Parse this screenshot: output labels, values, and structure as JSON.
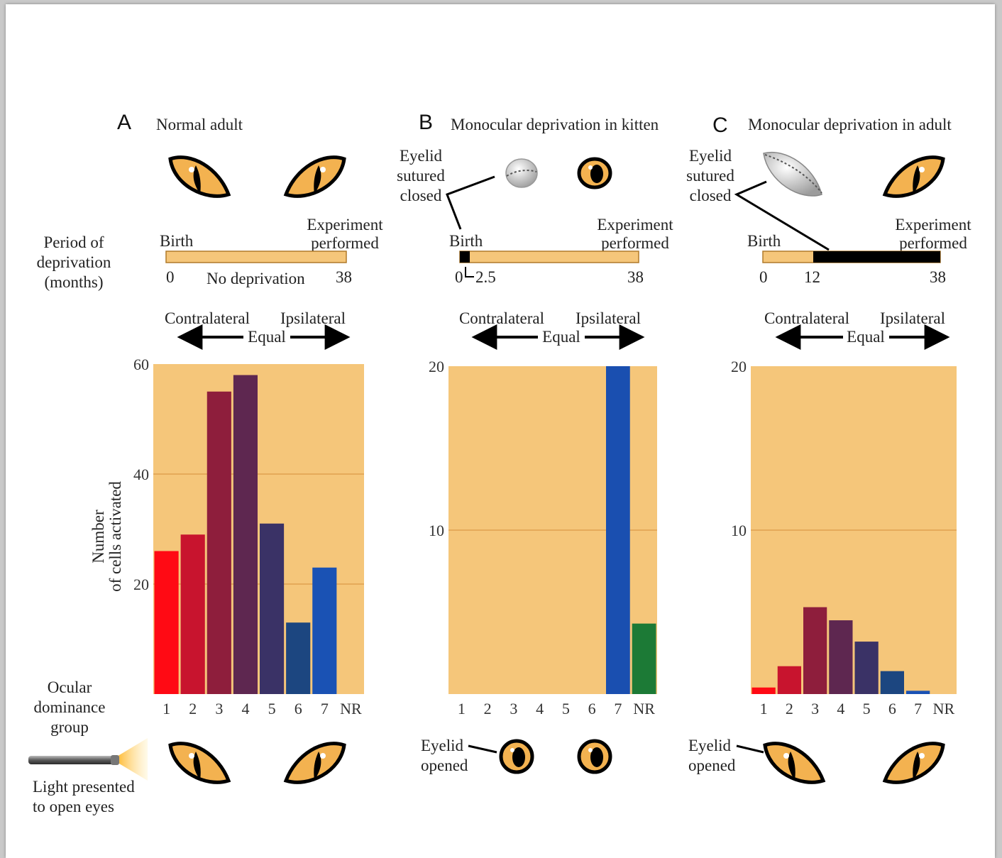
{
  "colors": {
    "plot_background": "#f5c67a",
    "gridline": "#e0a050",
    "eye_fill": "#f3b250",
    "timeline_fill": "#f5c67a",
    "deprivation_bar": "#000000"
  },
  "labels": {
    "period_of_deprivation": [
      "Period of",
      "deprivation",
      "(months)"
    ],
    "y_axis": [
      "Number",
      "of cells activated"
    ],
    "ocular_dominance_group": [
      "Ocular",
      "dominance",
      "group"
    ],
    "light_presented": [
      "Light presented",
      "to open eyes"
    ],
    "contralateral": "Contralateral",
    "ipsilateral": "Ipsilateral",
    "equal": "Equal",
    "birth": "Birth",
    "experiment_performed": [
      "Experiment",
      "performed"
    ],
    "eyelid_sutured_closed": [
      "Eyelid",
      "sutured",
      "closed"
    ],
    "eyelid_opened": [
      "Eyelid",
      "opened"
    ]
  },
  "panels": [
    {
      "letter": "A",
      "title": "Normal adult",
      "timeline": {
        "start": "0",
        "end": "38",
        "note": "No deprivation"
      },
      "top_eyes": [
        "cat-eye-icon",
        "cat-eye-icon"
      ],
      "bottom_eyes": [
        "cat-eye-icon",
        "cat-eye-icon"
      ]
    },
    {
      "letter": "B",
      "title": "Monocular deprivation in kitten",
      "timeline": {
        "start": "0",
        "end": "38",
        "deprivation_label": "2.5",
        "deprivation_months": [
          0,
          2.5
        ]
      },
      "top_eyes": [
        "sutured-eye-icon",
        "dilated-eye-icon"
      ],
      "bottom_eyes": [
        "dilated-eye-icon",
        "dilated-eye-icon"
      ]
    },
    {
      "letter": "C",
      "title": "Monocular deprivation in adult",
      "timeline": {
        "start": "0",
        "mid": "12",
        "end": "38",
        "deprivation_months": [
          12,
          38
        ]
      },
      "top_eyes": [
        "sutured-eye-icon",
        "cat-eye-icon"
      ],
      "bottom_eyes": [
        "cat-eye-icon",
        "cat-eye-icon"
      ]
    }
  ],
  "chart_data": [
    {
      "type": "bar",
      "panel": "A",
      "title": "Normal adult",
      "xlabel": "Ocular dominance group",
      "ylabel": "Number of cells activated",
      "categories": [
        "1",
        "2",
        "3",
        "4",
        "5",
        "6",
        "7",
        "NR"
      ],
      "values": [
        26,
        29,
        55,
        58,
        31,
        13,
        23,
        0
      ],
      "bar_colors": [
        "#ff0a14",
        "#c8142e",
        "#8e1e3c",
        "#5e2750",
        "#3a3266",
        "#1c4680",
        "#1a52b4",
        null
      ],
      "ylim": [
        0,
        60
      ],
      "yticks": [
        20,
        40,
        60
      ],
      "grid": true
    },
    {
      "type": "bar",
      "panel": "B",
      "title": "Monocular deprivation in kitten",
      "xlabel": "Ocular dominance group",
      "ylabel": "Number of cells activated",
      "categories": [
        "1",
        "2",
        "3",
        "4",
        "5",
        "6",
        "7",
        "NR"
      ],
      "values": [
        0,
        0,
        0,
        0,
        0,
        0,
        20,
        4.3
      ],
      "bar_colors": [
        null,
        null,
        null,
        null,
        null,
        null,
        "#1a4fb0",
        "#1c7a36"
      ],
      "ylim": [
        0,
        20
      ],
      "yticks": [
        10,
        20
      ],
      "grid": true
    },
    {
      "type": "bar",
      "panel": "C",
      "title": "Monocular deprivation in adult",
      "xlabel": "Ocular dominance group",
      "ylabel": "Number of cells activated",
      "categories": [
        "1",
        "2",
        "3",
        "4",
        "5",
        "6",
        "7",
        "NR"
      ],
      "values": [
        0.4,
        1.7,
        5.3,
        4.5,
        3.2,
        1.4,
        0.2,
        0
      ],
      "bar_colors": [
        "#ff0a14",
        "#c8142e",
        "#8e1e3c",
        "#5e2750",
        "#3a3266",
        "#1c4680",
        "#1a52b4",
        null
      ],
      "ylim": [
        0,
        20
      ],
      "yticks": [
        10,
        20
      ],
      "grid": true
    }
  ]
}
